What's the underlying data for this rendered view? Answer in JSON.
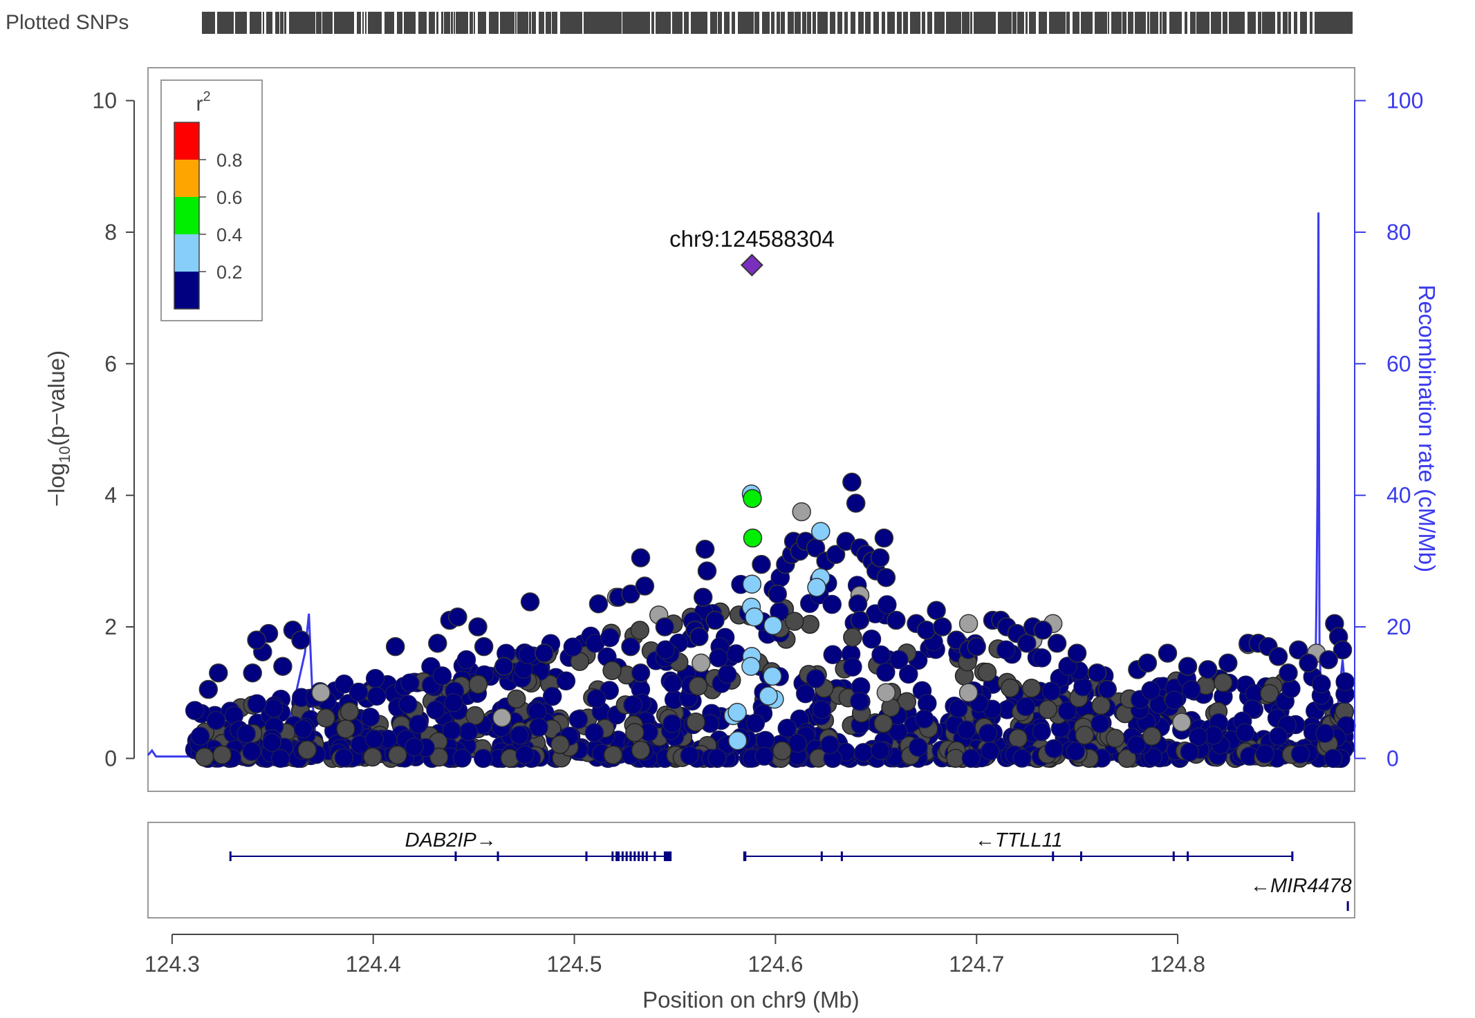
{
  "chart_data": {
    "type": "scatter",
    "subtype": "locuszoom",
    "snp_track_label": "Plotted SNPs",
    "xlabel": "Position on chr9 (Mb)",
    "xlim": [
      124.288,
      124.888
    ],
    "x_ticks": [
      124.3,
      124.4,
      124.5,
      124.6,
      124.7,
      124.8
    ],
    "x_tick_labels": [
      "124.3",
      "124.4",
      "124.5",
      "124.6",
      "124.7",
      "124.8"
    ],
    "ylabel_left_prefix": "−log",
    "ylabel_left_sub": "10",
    "ylabel_left_suffix": "(p−value)",
    "ylim": [
      -0.5,
      10.5
    ],
    "y_ticks": [
      0,
      2,
      4,
      6,
      8,
      10
    ],
    "y_tick_labels": [
      "0",
      "2",
      "4",
      "6",
      "8",
      "10"
    ],
    "ylabel_right": "Recombination rate (cM/Mb)",
    "y2lim": [
      -5,
      105
    ],
    "y2_ticks": [
      0,
      20,
      40,
      60,
      80,
      100
    ],
    "y2_tick_labels": [
      "0",
      "20",
      "40",
      "60",
      "80",
      "100"
    ],
    "grid": false,
    "legend": {
      "title": "r",
      "title_sup": "2",
      "placement": "top-left",
      "labels": [
        "0.8",
        "0.6",
        "0.4",
        "0.2"
      ],
      "colors": [
        "#ff0000",
        "#ffa500",
        "#00ee00",
        "#87cefa",
        "#000080"
      ]
    },
    "lead_snp": {
      "label": "chr9:124588304",
      "x": 124.5883,
      "y": 7.5,
      "color": "#7b2fbe"
    },
    "recombination_rate": {
      "color": "#3a3aee",
      "x": [
        124.288,
        124.29,
        124.292,
        124.308,
        124.309,
        124.31,
        124.312,
        124.33,
        124.355,
        124.366,
        124.368,
        124.37,
        124.372,
        124.38,
        124.42,
        124.5,
        124.6,
        124.7,
        124.8,
        124.85,
        124.868,
        124.869,
        124.8695,
        124.87,
        124.8705,
        124.871,
        124.8715,
        124.873,
        124.878,
        124.882,
        124.884,
        124.886,
        124.888
      ],
      "y": [
        0.5,
        1.2,
        0.3,
        0.3,
        3.5,
        0.4,
        0.2,
        0.3,
        1.0,
        16.0,
        22.0,
        8.0,
        0.5,
        0.3,
        0.2,
        0.2,
        0.2,
        0.2,
        0.2,
        0.3,
        1.0,
        24.0,
        40.0,
        83.0,
        18.0,
        12.0,
        5.0,
        2.0,
        3.0,
        15.0,
        8.0,
        3.0,
        1.0
      ]
    },
    "categories": [
      "r2 0.4-0.6",
      "r2 0.2-0.4",
      "r2 < 0.2",
      "no LD info"
    ],
    "series": [
      {
        "name": "r2 0.4-0.6",
        "color": "#00ee00",
        "points": [
          [
            124.5885,
            3.95
          ],
          [
            124.5887,
            3.35
          ]
        ]
      },
      {
        "name": "r2 0.2-0.4",
        "color": "#87cefa",
        "points": [
          [
            124.588,
            4.02
          ],
          [
            124.5883,
            2.65
          ],
          [
            124.588,
            2.3
          ],
          [
            124.5895,
            2.15
          ],
          [
            124.5988,
            2.02
          ],
          [
            124.5882,
            1.55
          ],
          [
            124.5878,
            1.4
          ],
          [
            124.5985,
            1.25
          ],
          [
            124.5995,
            0.9
          ],
          [
            124.5965,
            0.95
          ],
          [
            124.579,
            0.65
          ],
          [
            124.581,
            0.7
          ],
          [
            124.5812,
            0.27
          ],
          [
            124.6225,
            3.45
          ],
          [
            124.6225,
            2.75
          ],
          [
            124.6205,
            2.6
          ]
        ]
      },
      {
        "name": "r2 < 0.2",
        "color": "#000080",
        "points": [
          [
            124.318,
            1.05
          ],
          [
            124.323,
            1.3
          ],
          [
            124.34,
            1.3
          ],
          [
            124.345,
            1.62
          ],
          [
            124.348,
            1.9
          ],
          [
            124.342,
            1.8
          ],
          [
            124.36,
            1.95
          ],
          [
            124.364,
            1.8
          ],
          [
            124.355,
            1.4
          ],
          [
            124.411,
            1.7
          ],
          [
            124.432,
            1.75
          ],
          [
            124.438,
            2.1
          ],
          [
            124.442,
            2.15
          ],
          [
            124.452,
            2.0
          ],
          [
            124.455,
            1.7
          ],
          [
            124.478,
            2.38
          ],
          [
            124.465,
            1.4
          ],
          [
            124.485,
            1.6
          ],
          [
            124.512,
            2.35
          ],
          [
            124.522,
            2.45
          ],
          [
            124.528,
            2.5
          ],
          [
            124.533,
            3.05
          ],
          [
            124.535,
            2.62
          ],
          [
            124.545,
            2.0
          ],
          [
            124.56,
            1.95
          ],
          [
            124.562,
            1.85
          ],
          [
            124.565,
            3.18
          ],
          [
            124.566,
            2.85
          ],
          [
            124.564,
            2.45
          ],
          [
            124.57,
            2.1
          ],
          [
            124.528,
            1.7
          ],
          [
            124.533,
            1.3
          ],
          [
            124.593,
            2.95
          ],
          [
            124.601,
            2.5
          ],
          [
            124.605,
            2.95
          ],
          [
            124.608,
            3.1
          ],
          [
            124.609,
            3.3
          ],
          [
            124.612,
            3.15
          ],
          [
            124.615,
            3.3
          ],
          [
            124.62,
            3.2
          ],
          [
            124.625,
            3.0
          ],
          [
            124.63,
            3.1
          ],
          [
            124.635,
            3.3
          ],
          [
            124.638,
            4.2
          ],
          [
            124.64,
            3.88
          ],
          [
            124.642,
            3.2
          ],
          [
            124.645,
            3.1
          ],
          [
            124.648,
            3.0
          ],
          [
            124.65,
            2.85
          ],
          [
            124.654,
            3.35
          ],
          [
            124.652,
            3.05
          ],
          [
            124.655,
            2.75
          ],
          [
            124.641,
            2.35
          ],
          [
            124.642,
            2.1
          ],
          [
            124.66,
            2.1
          ],
          [
            124.67,
            2.05
          ],
          [
            124.675,
            1.95
          ],
          [
            124.68,
            2.25
          ],
          [
            124.683,
            2.0
          ],
          [
            124.69,
            1.8
          ],
          [
            124.696,
            1.65
          ],
          [
            124.7,
            1.7
          ],
          [
            124.708,
            2.1
          ],
          [
            124.712,
            2.1
          ],
          [
            124.715,
            2.0
          ],
          [
            124.72,
            1.9
          ],
          [
            124.725,
            1.75
          ],
          [
            124.728,
            2.0
          ],
          [
            124.733,
            1.95
          ],
          [
            124.74,
            1.75
          ],
          [
            124.75,
            1.6
          ],
          [
            124.76,
            1.3
          ],
          [
            124.765,
            1.05
          ],
          [
            124.78,
            1.35
          ],
          [
            124.785,
            1.45
          ],
          [
            124.795,
            1.6
          ],
          [
            124.805,
            1.4
          ],
          [
            124.815,
            1.35
          ],
          [
            124.825,
            1.45
          ],
          [
            124.835,
            1.75
          ],
          [
            124.84,
            1.75
          ],
          [
            124.845,
            1.7
          ],
          [
            124.85,
            1.55
          ],
          [
            124.855,
            1.3
          ],
          [
            124.86,
            1.65
          ],
          [
            124.865,
            1.45
          ],
          [
            124.878,
            2.05
          ],
          [
            124.88,
            1.85
          ],
          [
            124.882,
            1.65
          ],
          [
            124.875,
            1.5
          ]
        ]
      },
      {
        "name": "no LD info",
        "color": "#a0a0a0",
        "points": [
          [
            124.374,
            1.0
          ],
          [
            124.521,
            2.45
          ],
          [
            124.542,
            2.18
          ],
          [
            124.613,
            3.75
          ],
          [
            124.642,
            2.48
          ],
          [
            124.696,
            2.05
          ],
          [
            124.738,
            2.05
          ],
          [
            124.655,
            1.0
          ],
          [
            124.728,
            1.8
          ],
          [
            124.464,
            0.62
          ],
          [
            124.835,
            1.73
          ],
          [
            124.869,
            1.6
          ],
          [
            124.802,
            0.55
          ],
          [
            124.563,
            1.45
          ],
          [
            124.696,
            1.0
          ]
        ]
      }
    ],
    "genes": [
      {
        "name": "DAB2IP",
        "label": "DAB2IP→",
        "start": 124.329,
        "end": 124.548,
        "strand": "+",
        "row": 0,
        "exons": [
          124.329,
          124.441,
          124.462,
          124.506,
          124.519,
          124.521,
          124.522,
          124.524,
          124.526,
          124.528,
          124.53,
          124.532,
          124.534,
          124.536,
          124.54,
          124.545,
          124.546,
          124.547
        ]
      },
      {
        "name": "TTLL11",
        "label": "←TTLL11",
        "start": 124.5845,
        "end": 124.8575,
        "strand": "-",
        "row": 0,
        "exons": [
          124.5845,
          124.585,
          124.623,
          124.633,
          124.738,
          124.752,
          124.798,
          124.805,
          124.857
        ]
      },
      {
        "name": "MIR4478",
        "label": "←MIR4478",
        "start": 124.8845,
        "end": 124.8848,
        "strand": "-",
        "row": 1,
        "exons": [
          124.8846
        ]
      }
    ]
  }
}
